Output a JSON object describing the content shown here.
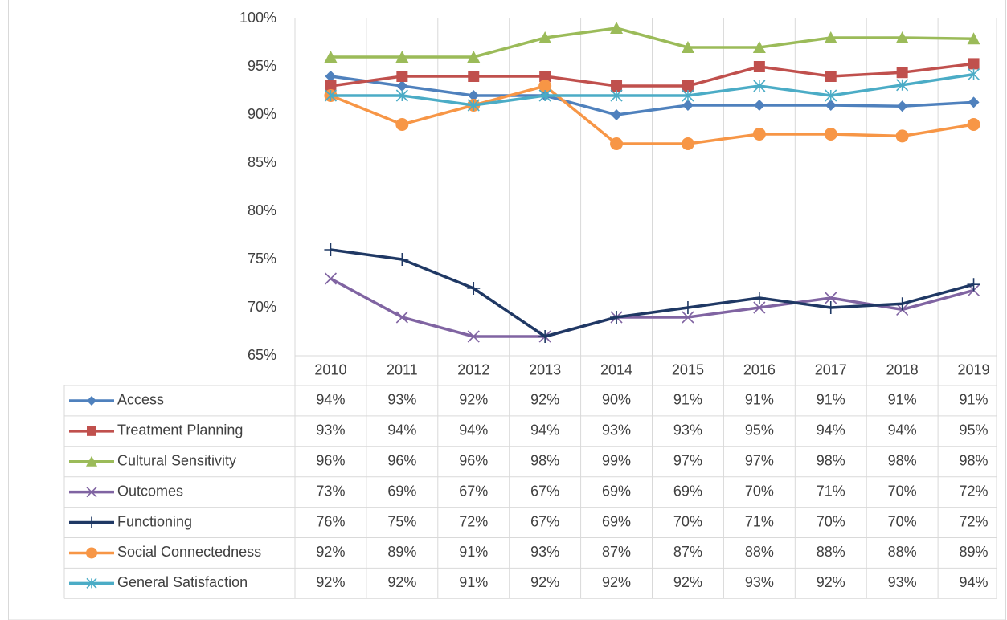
{
  "chart_data": {
    "type": "line",
    "categories": [
      "2010",
      "2011",
      "2012",
      "2013",
      "2014",
      "2015",
      "2016",
      "2017",
      "2018",
      "2019"
    ],
    "ylim": [
      65,
      100
    ],
    "yticks": [
      {
        "value": 65,
        "label": "65%"
      },
      {
        "value": 70,
        "label": "70%"
      },
      {
        "value": 75,
        "label": "75%"
      },
      {
        "value": 80,
        "label": "80%"
      },
      {
        "value": 85,
        "label": "85%"
      },
      {
        "value": 90,
        "label": "90%"
      },
      {
        "value": 95,
        "label": "95%"
      },
      {
        "value": 100,
        "label": "100%"
      }
    ],
    "grid": "vertical",
    "data_table": true,
    "series": [
      {
        "name": "Access",
        "color": "#4f81bd",
        "marker": "diamond",
        "values": [
          94,
          93,
          92,
          92,
          90,
          91,
          91,
          91,
          90.9,
          91.3
        ],
        "value_labels": [
          "94%",
          "93%",
          "92%",
          "92%",
          "90%",
          "91%",
          "91%",
          "91%",
          "91%",
          "91%"
        ]
      },
      {
        "name": "Treatment Planning",
        "color": "#c0504d",
        "marker": "square",
        "values": [
          93,
          94,
          94,
          94,
          93,
          93,
          95,
          94,
          94.4,
          95.3
        ],
        "value_labels": [
          "93%",
          "94%",
          "94%",
          "94%",
          "93%",
          "93%",
          "95%",
          "94%",
          "94%",
          "95%"
        ]
      },
      {
        "name": "Cultural Sensitivity",
        "color": "#9bbb59",
        "marker": "triangle",
        "values": [
          96,
          96,
          96,
          98,
          99,
          97,
          97,
          98,
          98,
          97.9
        ],
        "value_labels": [
          "96%",
          "96%",
          "96%",
          "98%",
          "99%",
          "97%",
          "97%",
          "98%",
          "98%",
          "98%"
        ]
      },
      {
        "name": "Outcomes",
        "color": "#8064a2",
        "marker": "x",
        "values": [
          73,
          69,
          67,
          67,
          69,
          69,
          70,
          71,
          69.8,
          71.8
        ],
        "value_labels": [
          "73%",
          "69%",
          "67%",
          "67%",
          "69%",
          "69%",
          "70%",
          "71%",
          "70%",
          "72%"
        ]
      },
      {
        "name": "Functioning",
        "color": "#1f3864",
        "marker": "plus",
        "values": [
          76,
          75,
          72,
          67,
          69,
          70,
          71,
          70,
          70.4,
          72.4
        ],
        "value_labels": [
          "76%",
          "75%",
          "72%",
          "67%",
          "69%",
          "70%",
          "71%",
          "70%",
          "70%",
          "72%"
        ]
      },
      {
        "name": "Social Connectedness",
        "color": "#f79646",
        "marker": "circle",
        "values": [
          92,
          89,
          91,
          93,
          87,
          87,
          88,
          88,
          87.8,
          89
        ],
        "value_labels": [
          "92%",
          "89%",
          "91%",
          "93%",
          "87%",
          "87%",
          "88%",
          "88%",
          "88%",
          "89%"
        ]
      },
      {
        "name": "General Satisfaction",
        "color": "#4bacc6",
        "marker": "star",
        "values": [
          92,
          92,
          91,
          92,
          92,
          92,
          93,
          92,
          93.1,
          94.2
        ],
        "value_labels": [
          "92%",
          "92%",
          "91%",
          "92%",
          "92%",
          "92%",
          "93%",
          "92%",
          "93%",
          "94%"
        ]
      }
    ]
  }
}
